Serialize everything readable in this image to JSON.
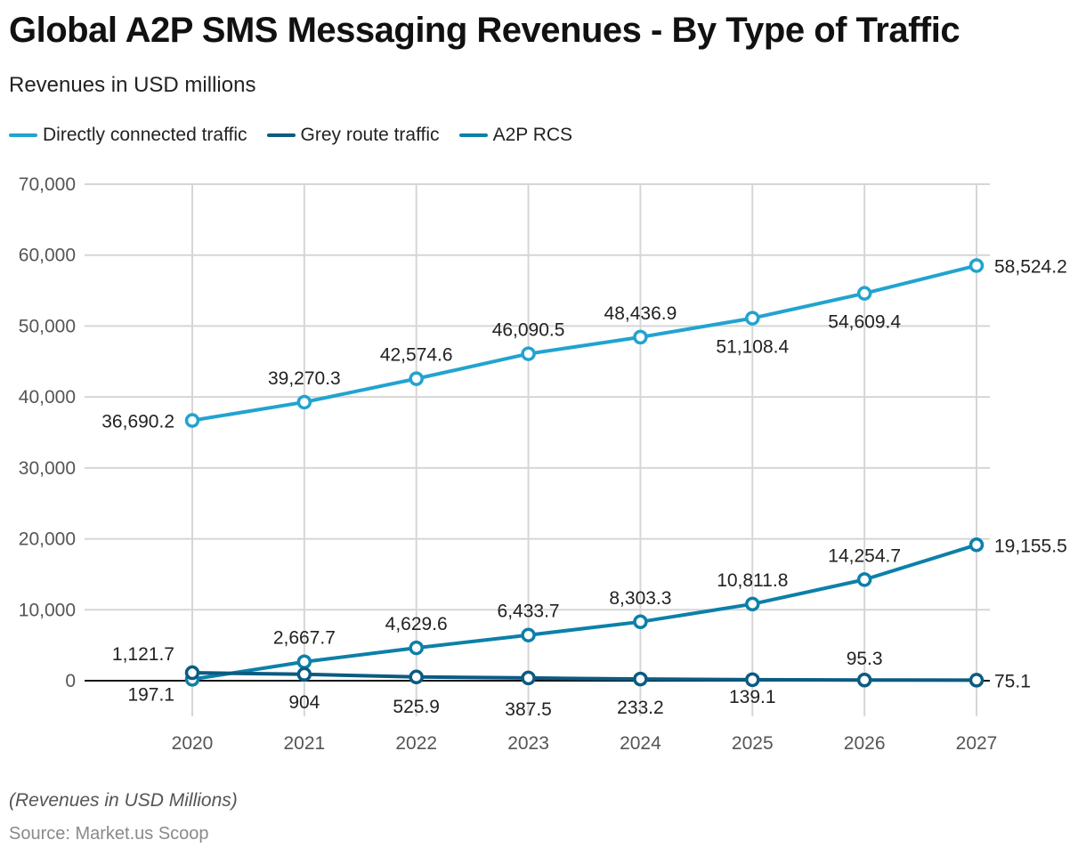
{
  "title": "Global A2P SMS Messaging Revenues - By Type of Traffic",
  "subtitle": "Revenues in USD millions",
  "note": "(Revenues in USD Millions)",
  "source": "Source: Market.us Scoop",
  "chart_data": {
    "type": "line",
    "title": "Global A2P SMS Messaging Revenues - By Type of Traffic",
    "subtitle": "Revenues in USD millions",
    "xlabel": "",
    "ylabel": "",
    "x": [
      "2020",
      "2021",
      "2022",
      "2023",
      "2024",
      "2025",
      "2026",
      "2027"
    ],
    "ylim": [
      0,
      70000
    ],
    "yticks": [
      0,
      10000,
      20000,
      30000,
      40000,
      50000,
      60000,
      70000
    ],
    "ytick_labels": [
      "0",
      "10,000",
      "20,000",
      "30,000",
      "40,000",
      "50,000",
      "60,000",
      "70,000"
    ],
    "grid": true,
    "legend_position": "top-left",
    "series": [
      {
        "name": "Directly connected traffic",
        "color": "#22a3d0",
        "values": [
          36690.2,
          39270.3,
          42574.6,
          46090.5,
          48436.9,
          51108.4,
          54609.4,
          58524.2
        ],
        "labels": [
          "36,690.2",
          "39,270.3",
          "42,574.6",
          "46,090.5",
          "48,436.9",
          "51,108.4",
          "54,609.4",
          "58,524.2"
        ]
      },
      {
        "name": "Grey route traffic",
        "color": "#0b5b82",
        "values": [
          1121.7,
          904,
          525.9,
          387.5,
          233.2,
          139.1,
          95.3,
          75.1
        ],
        "labels": [
          "1,121.7",
          "904",
          "525.9",
          "387.5",
          "233.2",
          "139.1",
          "95.3",
          "75.1"
        ]
      },
      {
        "name": "A2P RCS",
        "color": "#0c80a9",
        "values": [
          197.1,
          2667.7,
          4629.6,
          6433.7,
          8303.3,
          10811.8,
          14254.7,
          19155.5
        ],
        "labels": [
          "197.1",
          "2,667.7",
          "4,629.6",
          "6,433.7",
          "8,303.3",
          "10,811.8",
          "14,254.7",
          "19,155.5"
        ]
      }
    ]
  }
}
